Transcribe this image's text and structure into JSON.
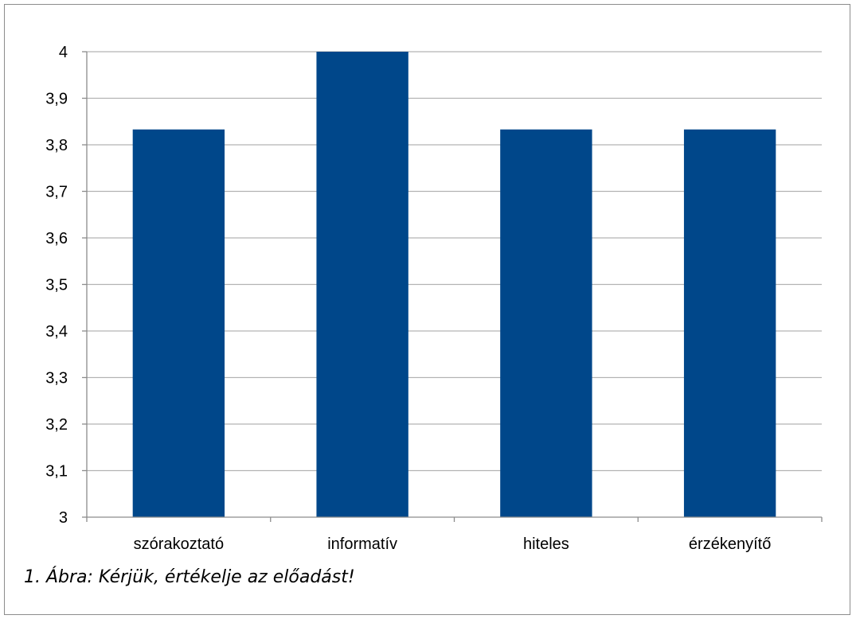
{
  "caption": "1. Ábra: Kérjük, értékelje az előadást!",
  "colors": {
    "bar": "#00478a",
    "grid": "#b3b3b3",
    "axis": "#8c8c8c"
  },
  "chart_data": {
    "type": "bar",
    "title": "",
    "xlabel": "",
    "ylabel": "",
    "categories": [
      "szórakoztató",
      "informatív",
      "hiteles",
      "érzékenyítő"
    ],
    "values": [
      3.833,
      4.0,
      3.833,
      3.833
    ],
    "ylim": [
      3,
      4
    ],
    "yticks": [
      "3",
      "3,1",
      "3,2",
      "3,3",
      "3,4",
      "3,5",
      "3,6",
      "3,7",
      "3,8",
      "3,9",
      "4"
    ],
    "grid": true,
    "legend": "none"
  }
}
